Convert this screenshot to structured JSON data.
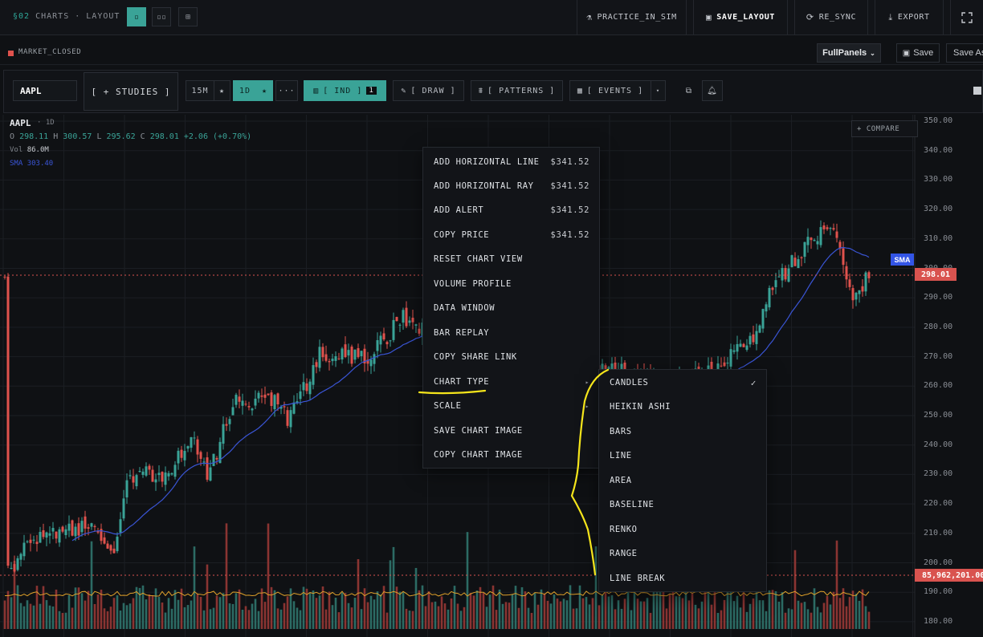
{
  "header": {
    "section": "§02",
    "crumb_rest": "CHARTS · LAYOUT",
    "layout_buttons": [
      "▫",
      "▫▫",
      "⊞"
    ],
    "actions": [
      {
        "label": "PRACTICE_IN_SIM",
        "icon": "flask-icon"
      },
      {
        "label": "SAVE_LAYOUT",
        "icon": "floppy-icon"
      },
      {
        "label": "RE_SYNC",
        "icon": "sync-icon"
      },
      {
        "label": "EXPORT",
        "icon": "download-icon"
      }
    ],
    "fullscreen_icon": "fullscreen-icon"
  },
  "status": {
    "market": "MARKET_CLOSED",
    "layout_select": "FullPanels",
    "save": "Save",
    "save_as": "Save As"
  },
  "toolbar": {
    "symbol": "AAPL",
    "studies": "[ + STUDIES ]",
    "tf1": "15M",
    "tf2": "1D",
    "more": "···",
    "ind": "[ IND ]",
    "ind_count": "1",
    "draw": "[ DRAW ]",
    "patterns": "[ PATTERNS ]",
    "events": "[ EVENTS ]"
  },
  "legend": {
    "symbol": "AAPL",
    "timeframe": "· 1D",
    "o_label": "O",
    "o": "298.11",
    "h_label": "H",
    "h": "300.57",
    "l_label": "L",
    "l": "295.62",
    "c_label": "C",
    "c": "298.01",
    "change": "+2.06 (+0.70%)",
    "vol_label": "Vol",
    "vol": "86.0M",
    "sma_label": "SMA",
    "sma": "303.40"
  },
  "compare": "+ COMPARE",
  "price_axis": [
    "350.00",
    "340.00",
    "330.00",
    "320.00",
    "310.00",
    "300.00",
    "290.00",
    "280.00",
    "270.00",
    "260.00",
    "250.00",
    "240.00",
    "230.00",
    "220.00",
    "210.00",
    "200.00",
    "190.00",
    "180.00"
  ],
  "tags": {
    "sma": "SMA",
    "last_price": "298.01",
    "last_volume": "85,962,201.00"
  },
  "context_menu": [
    {
      "label": "ADD HORIZONTAL LINE",
      "value": "$341.52"
    },
    {
      "label": "ADD HORIZONTAL RAY",
      "value": "$341.52"
    },
    {
      "label": "ADD ALERT",
      "value": "$341.52"
    },
    {
      "label": "COPY PRICE",
      "value": "$341.52"
    },
    {
      "label": "RESET CHART VIEW",
      "value": ""
    },
    {
      "label": "VOLUME PROFILE",
      "value": ""
    },
    {
      "label": "DATA WINDOW",
      "value": ""
    },
    {
      "label": "BAR REPLAY",
      "value": ""
    },
    {
      "label": "COPY SHARE LINK",
      "value": ""
    },
    {
      "label": "CHART TYPE",
      "value": "▸"
    },
    {
      "label": "SCALE",
      "value": "▸"
    },
    {
      "label": "SAVE CHART IMAGE",
      "value": ""
    },
    {
      "label": "COPY CHART IMAGE",
      "value": ""
    }
  ],
  "chart_type_menu": [
    {
      "label": "CANDLES",
      "checked": "✓"
    },
    {
      "label": "HEIKIN ASHI",
      "checked": ""
    },
    {
      "label": "BARS",
      "checked": ""
    },
    {
      "label": "LINE",
      "checked": ""
    },
    {
      "label": "AREA",
      "checked": ""
    },
    {
      "label": "BASELINE",
      "checked": ""
    },
    {
      "label": "RENKO",
      "checked": ""
    },
    {
      "label": "RANGE",
      "checked": ""
    },
    {
      "label": "LINE BREAK",
      "checked": ""
    }
  ],
  "colors": {
    "up": "#3aa397",
    "down": "#e0524d",
    "sma": "#3a55d6",
    "volume_ma": "#e0a12a",
    "accent": "#3aa397",
    "annotation": "#f5e51b"
  }
}
